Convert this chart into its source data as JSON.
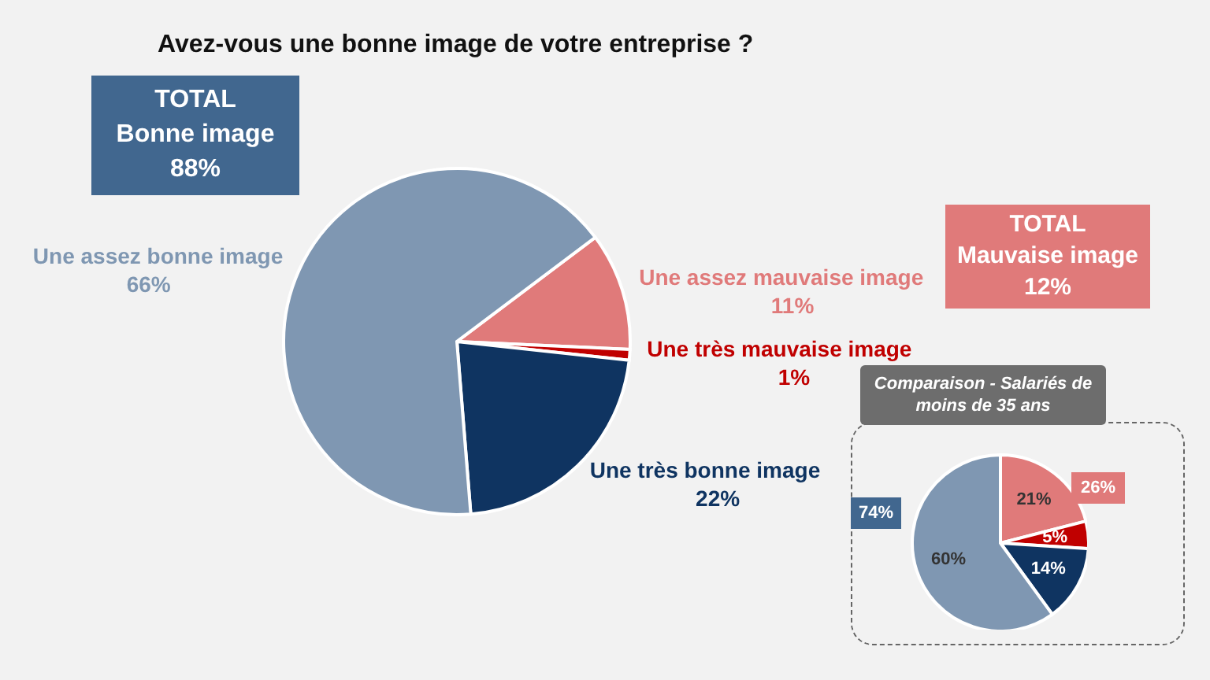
{
  "chart_data": [
    {
      "type": "pie",
      "title": "Avez-vous une bonne image de votre entreprise ?",
      "categories": [
        "Une assez mauvaise image",
        "Une très mauvaise image",
        "Une très bonne image",
        "Une assez bonne image"
      ],
      "values": [
        11,
        1,
        22,
        66
      ],
      "value_labels": [
        "11%",
        "1%",
        "22%",
        "66%"
      ],
      "colors": [
        "#e07a7a",
        "#c00000",
        "#0f3461",
        "#7f97b2"
      ],
      "annotations": [
        "TOTAL\nBonne image\n88%",
        "TOTAL\nMauvaise image\n12%"
      ]
    },
    {
      "type": "pie",
      "title": "Comparaison - Salariés de moins de 35 ans",
      "categories": [
        null,
        null,
        null,
        null
      ],
      "values": [
        21,
        5,
        14,
        60
      ],
      "value_labels": [
        "21%",
        "5%",
        "14%",
        "60%"
      ],
      "colors": [
        "#e07a7a",
        "#c00000",
        "#0f3461",
        "#7f97b2"
      ],
      "annotations": [
        "74%",
        "26%"
      ]
    }
  ]
}
